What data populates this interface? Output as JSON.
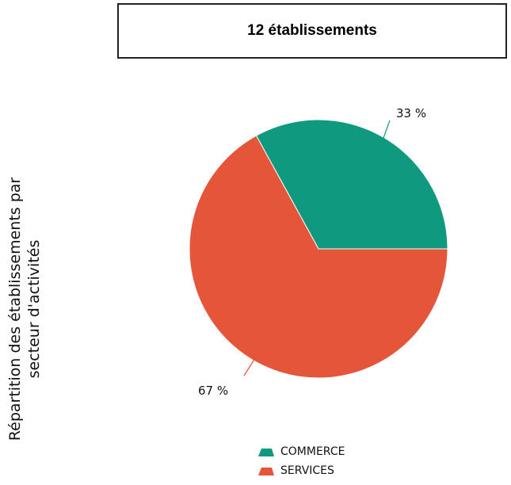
{
  "header": {
    "title": "12 établissements"
  },
  "side_label": {
    "line1": "Répartition des établissements par",
    "line2": "secteur d'activités"
  },
  "chart_data": {
    "type": "pie",
    "title": "12 établissements",
    "slices": [
      {
        "label": "COMMERCE",
        "value": 33,
        "display": "33 %",
        "color": "#0f9a80"
      },
      {
        "label": "SERVICES",
        "value": 67,
        "display": "67 %",
        "color": "#e5553a"
      }
    ],
    "legend": "bottom"
  }
}
